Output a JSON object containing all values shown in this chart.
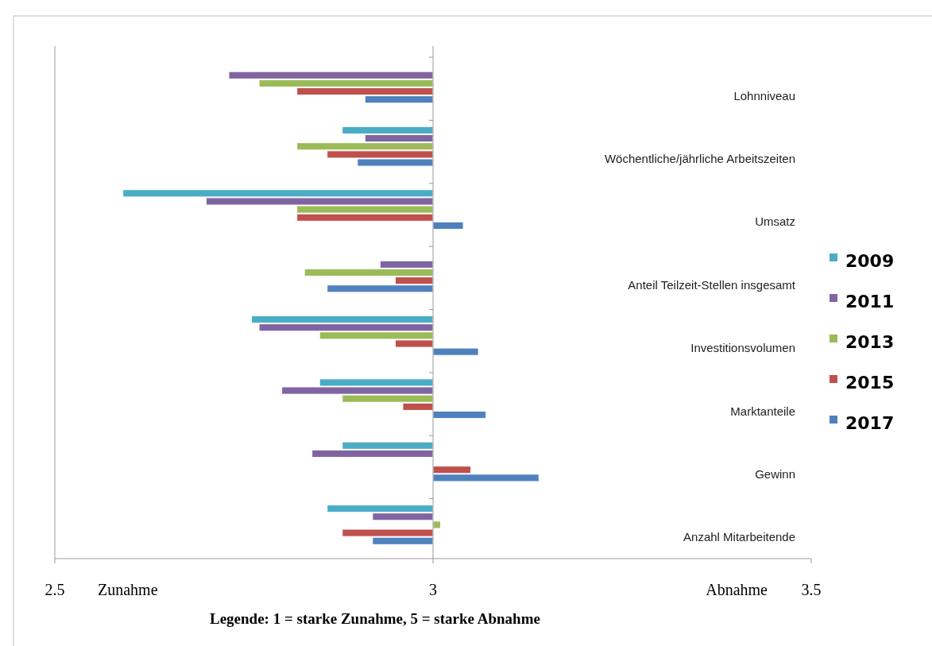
{
  "chart_data": {
    "type": "bar",
    "orientation": "horizontal",
    "categories": [
      "Lohnniveau",
      "Wöchentliche/jährliche Arbeitszeiten",
      "Umsatz",
      "Anteil Teilzeit-Stellen insgesamt",
      "Investitionsvolumen",
      "Marktanteile",
      "Gewinn",
      "Anzahl Mitarbeitende"
    ],
    "series": [
      {
        "name": "2009",
        "color": "#4bacc6",
        "values": [
          null,
          -0.12,
          -0.41,
          null,
          -0.24,
          -0.15,
          -0.12,
          -0.14
        ],
        "base": [
          null,
          3,
          3,
          null,
          3,
          3,
          3,
          3
        ]
      },
      {
        "name": "2011",
        "color": "#8064a2",
        "values": [
          -0.27,
          -0.09,
          -0.3,
          -0.07,
          -0.23,
          -0.2,
          -0.16,
          -0.08
        ],
        "base": [
          3,
          3,
          3,
          3,
          3,
          3,
          3,
          3
        ]
      },
      {
        "name": "2013",
        "color": "#9bbb59",
        "values": [
          -0.23,
          -0.18,
          -0.18,
          -0.17,
          -0.15,
          -0.12,
          null,
          0.01
        ],
        "base": [
          3,
          3,
          3,
          3,
          3,
          3,
          null,
          3
        ]
      },
      {
        "name": "2015",
        "color": "#c0504d",
        "values": [
          -0.18,
          -0.14,
          -0.18,
          -0.05,
          -0.05,
          -0.04,
          0.05,
          -0.12
        ],
        "base": [
          3,
          3,
          3,
          3,
          3,
          3,
          3,
          3
        ]
      },
      {
        "name": "2017",
        "color": "#4f81bd",
        "values": [
          -0.09,
          -0.1,
          0.04,
          -0.14,
          0.06,
          0.07,
          0.14,
          -0.08
        ],
        "base": [
          3,
          3,
          3,
          3,
          3,
          3,
          3,
          3
        ]
      }
    ],
    "ref_lines": [
      {
        "axis": "x",
        "value": 3,
        "color": "#999999"
      }
    ],
    "xlim": [
      2.5,
      3.5
    ],
    "xticks": [
      2.5,
      3,
      3.5
    ],
    "grid": false,
    "legend": "right",
    "annotations": [
      "Zunahme",
      "Abnahme",
      "Legende: 1 = starke Zunahme, 5 = starke Abnahme"
    ]
  }
}
